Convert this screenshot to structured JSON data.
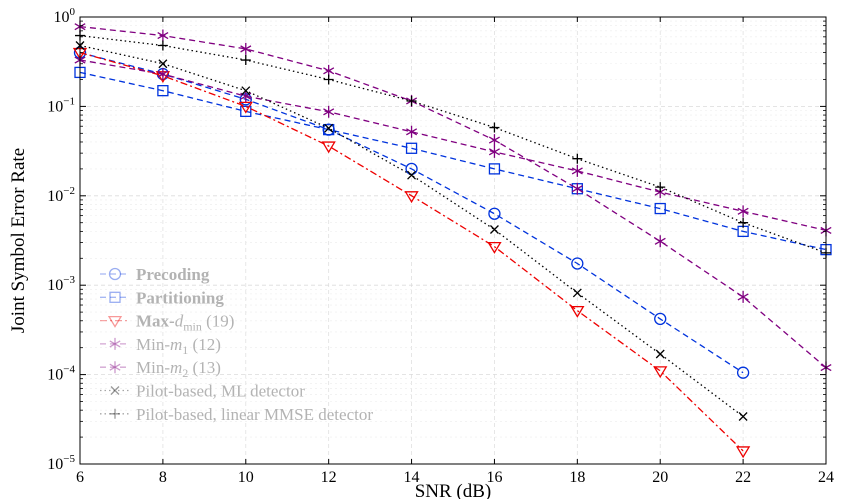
{
  "chart_data": {
    "type": "line",
    "xlabel": "SNR (dB)",
    "ylabel": "Joint Symbol Error Rate",
    "xlim": [
      6,
      24
    ],
    "ylim": [
      1e-05,
      1
    ],
    "yscale": "log",
    "grid": true,
    "legend_position": "bottom-left",
    "x_ticks": [
      "6",
      "8",
      "10",
      "12",
      "14",
      "16",
      "18",
      "20",
      "22",
      "24"
    ],
    "y_ticks": [
      {
        "base": "10",
        "exp": "−5"
      },
      {
        "base": "10",
        "exp": "−4"
      },
      {
        "base": "10",
        "exp": "−3"
      },
      {
        "base": "10",
        "exp": "−2"
      },
      {
        "base": "10",
        "exp": "−1"
      },
      {
        "base": "10",
        "exp": "0"
      }
    ],
    "series": [
      {
        "name": "Precoding",
        "suffix": "",
        "bold": true,
        "color": "#0033dd",
        "dash": "6,4",
        "marker": "circle",
        "x": [
          6,
          8,
          10,
          12,
          14,
          16,
          18,
          20,
          22
        ],
        "y": [
          0.4,
          0.23,
          0.12,
          0.055,
          0.02,
          0.0063,
          0.00175,
          0.00042,
          0.000105
        ]
      },
      {
        "name": "Partitioning",
        "suffix": "",
        "bold": true,
        "color": "#0033dd",
        "dash": "6,4",
        "marker": "square",
        "x": [
          6,
          8,
          10,
          12,
          14,
          16,
          18,
          20,
          22,
          24
        ],
        "y": [
          0.24,
          0.15,
          0.088,
          0.055,
          0.034,
          0.02,
          0.012,
          0.0072,
          0.004,
          0.0025
        ]
      },
      {
        "name": "Max-",
        "math": "d",
        "math_sub": "min",
        "suffix": " (19)",
        "bold": true,
        "color": "#ee0000",
        "dash": "7,3,2,3",
        "marker": "triangle-down",
        "x": [
          6,
          8,
          10,
          12,
          14,
          16,
          18,
          20,
          22
        ],
        "y": [
          0.4,
          0.22,
          0.1,
          0.036,
          0.01,
          0.0027,
          0.00052,
          0.00011,
          1.4e-05
        ]
      },
      {
        "name": "Min-",
        "math": "m",
        "math_sub": "1",
        "suffix": " (12)",
        "bold": false,
        "color": "#800080",
        "dash": "6,4",
        "marker": "star",
        "x": [
          6,
          8,
          10,
          12,
          14,
          16,
          18,
          20,
          22,
          24
        ],
        "y": [
          0.33,
          0.23,
          0.13,
          0.087,
          0.052,
          0.031,
          0.019,
          0.011,
          0.0067,
          0.0041
        ]
      },
      {
        "name": "Min-",
        "math": "m",
        "math_sub": "2",
        "suffix": " (13)",
        "bold": false,
        "color": "#800080",
        "dash": "6,4",
        "marker": "star",
        "x": [
          6,
          8,
          10,
          12,
          14,
          16,
          18,
          20,
          22,
          24
        ],
        "y": [
          0.78,
          0.62,
          0.44,
          0.25,
          0.115,
          0.042,
          0.012,
          0.0031,
          0.00074,
          0.00012
        ]
      },
      {
        "name": "Pilot-based, ML detector",
        "suffix": "",
        "bold": false,
        "color": "#000000",
        "dash": "1.5,3",
        "marker": "x",
        "x": [
          6,
          8,
          10,
          12,
          14,
          16,
          18,
          20,
          22
        ],
        "y": [
          0.48,
          0.3,
          0.15,
          0.057,
          0.017,
          0.0042,
          0.00082,
          0.00017,
          3.4e-05
        ]
      },
      {
        "name": "Pilot-based, linear MMSE detector",
        "suffix": "",
        "bold": false,
        "color": "#000000",
        "dash": "1.5,3",
        "marker": "plus",
        "x": [
          6,
          8,
          10,
          12,
          14,
          16,
          18,
          20,
          22,
          24
        ],
        "y": [
          0.62,
          0.48,
          0.33,
          0.2,
          0.115,
          0.058,
          0.026,
          0.0125,
          0.005,
          0.0023
        ]
      }
    ]
  }
}
